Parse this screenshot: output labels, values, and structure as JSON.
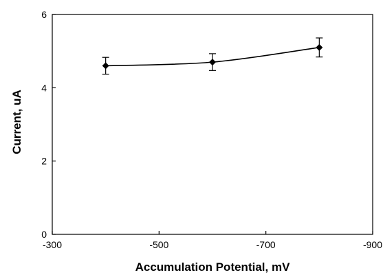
{
  "chart_data": {
    "type": "line",
    "title": "",
    "xlabel": "Accumulation Potential, mV",
    "ylabel": "Current, uA",
    "xlim": [
      -300,
      -900
    ],
    "ylim": [
      0,
      6
    ],
    "x_ticks": [
      -300,
      -500,
      -700,
      -900
    ],
    "x_tick_labels": [
      "-300",
      "-500",
      "-700",
      "-900"
    ],
    "y_ticks": [
      0,
      2,
      4,
      6
    ],
    "y_tick_labels": [
      "0",
      "2",
      "4",
      "6"
    ],
    "grid": false,
    "legend": "none",
    "series": [
      {
        "x": [
          -400,
          -600,
          -800
        ],
        "y": [
          4.6,
          4.7,
          5.1
        ],
        "error": [
          0.23,
          0.23,
          0.26
        ],
        "marker": "diamond",
        "color": "#000000"
      }
    ]
  }
}
